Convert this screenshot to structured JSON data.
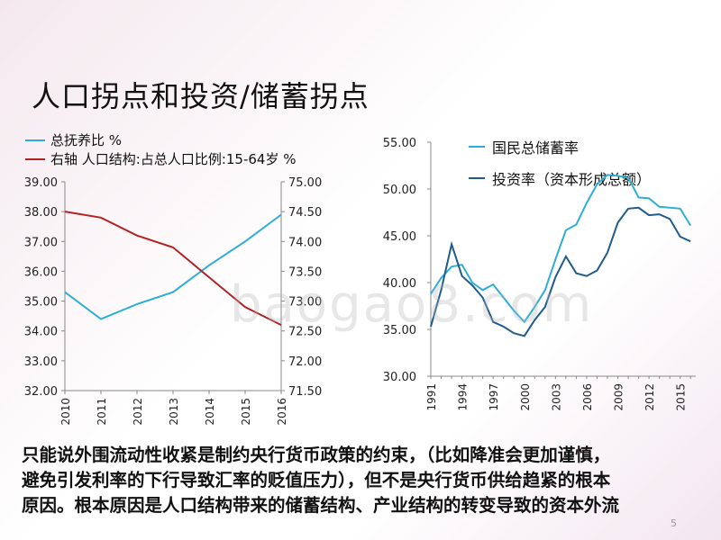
{
  "slide": {
    "title": "人口拐点和投资/储蓄拐点",
    "page_number": "5",
    "watermark": "baogao8.com",
    "body_lines": [
      "只能说外围流动性收紧是制约央行货币政策的约束，（比如降准会更加谨慎，",
      "避免引发利率的下行导致汇率的贬值压力），但不是央行货币供给趋紧的根本",
      "原因。根本原因是人口结构带来的储蓄结构、产业结构的转变导致的资本外流"
    ]
  },
  "colors": {
    "cyan": "#2EAED6",
    "red": "#B22222",
    "navy": "#1F5C8B"
  },
  "chart_data": [
    {
      "type": "line",
      "categories": [
        "2010",
        "2011",
        "2012",
        "2013",
        "2014",
        "2015",
        "2016"
      ],
      "series": [
        {
          "name": "总抚养比 %",
          "axis": "left",
          "color": "#2EAED6",
          "values": [
            35.3,
            34.4,
            34.9,
            35.3,
            36.2,
            37.0,
            37.9
          ]
        },
        {
          "name": "右轴 人口结构:占总人口比例:15-64岁 %",
          "axis": "right",
          "color": "#B22222",
          "values": [
            74.5,
            74.4,
            74.1,
            73.9,
            73.4,
            72.9,
            72.6
          ]
        }
      ],
      "y_left": {
        "ylim": [
          32,
          39
        ],
        "ticks": [
          "32.00",
          "33.00",
          "34.00",
          "35.00",
          "36.00",
          "37.00",
          "38.00",
          "39.00"
        ]
      },
      "y_right": {
        "ylim": [
          71.5,
          75
        ],
        "ticks": [
          "71.50",
          "72.00",
          "72.50",
          "73.00",
          "73.50",
          "74.00",
          "74.50",
          "75.00"
        ]
      },
      "legend_position": "top-left"
    },
    {
      "type": "line",
      "x": [
        1991,
        1992,
        1993,
        1994,
        1995,
        1996,
        1997,
        1998,
        1999,
        2000,
        2001,
        2002,
        2003,
        2004,
        2005,
        2006,
        2007,
        2008,
        2009,
        2010,
        2011,
        2012,
        2013,
        2014,
        2015,
        2016
      ],
      "x_tick_labels": [
        "1991",
        "1994",
        "1997",
        "2000",
        "2003",
        "2006",
        "2009",
        "2012",
        "2015"
      ],
      "series": [
        {
          "name": "国民总储蓄率",
          "color": "#2EAED6",
          "values": [
            38.8,
            40.5,
            41.7,
            41.9,
            40.0,
            39.2,
            39.8,
            38.4,
            37.0,
            35.8,
            37.4,
            39.2,
            42.5,
            45.6,
            46.2,
            48.5,
            50.5,
            51.5,
            51.4,
            51.2,
            49.1,
            49.0,
            48.1,
            48.0,
            47.9,
            46.1
          ]
        },
        {
          "name": "投资率（资本形成总额）",
          "color": "#1F5C8B",
          "values": [
            35.3,
            39.2,
            44.1,
            40.7,
            39.7,
            38.4,
            35.8,
            35.3,
            34.6,
            34.3,
            36.0,
            37.4,
            40.6,
            42.8,
            41.0,
            40.7,
            41.3,
            43.2,
            46.4,
            47.9,
            48.0,
            47.2,
            47.3,
            46.8,
            44.9,
            44.4
          ]
        }
      ],
      "ylim": [
        30,
        55
      ],
      "y_ticks": [
        "30.00",
        "35.00",
        "40.00",
        "45.00",
        "50.00",
        "55.00"
      ],
      "legend_position": "top-right"
    }
  ]
}
